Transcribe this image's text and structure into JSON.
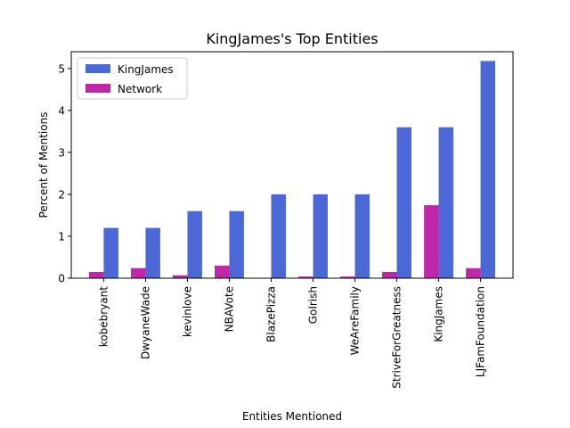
{
  "chart_data": {
    "type": "bar",
    "title": "KingJames's Top Entities",
    "xlabel": "Entities Mentioned",
    "ylabel": "Percent of Mentions",
    "categories": [
      "kobebryant",
      "DwyaneWade",
      "kevinlove",
      "NBAVote",
      "BlazePizza",
      "GoIrish",
      "WeAreFamily",
      "StriveForGreatness",
      "KingJames",
      "LJFamFoundation"
    ],
    "series": [
      {
        "name": "KingJames",
        "color": "#4c68d6",
        "values": [
          1.2,
          1.2,
          1.6,
          1.6,
          2.0,
          2.0,
          2.0,
          3.6,
          3.6,
          5.18
        ]
      },
      {
        "name": "Network",
        "color": "#c027a8",
        "values": [
          0.15,
          0.24,
          0.07,
          0.3,
          0.0,
          0.04,
          0.04,
          0.15,
          1.74,
          0.24
        ]
      }
    ],
    "ylim": [
      0,
      5.4
    ],
    "yticks": [
      0,
      1,
      2,
      3,
      4,
      5
    ],
    "legend_position": "top-left",
    "grid": false
  }
}
